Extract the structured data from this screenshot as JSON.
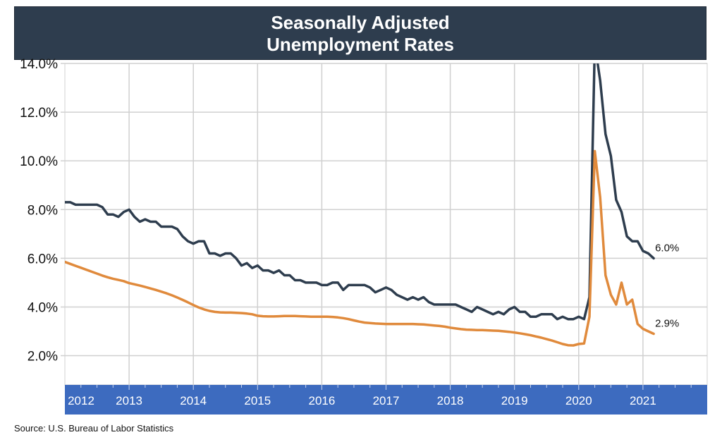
{
  "chart_data": {
    "type": "line",
    "title": [
      "Seasonally Adjusted",
      "Unemployment Rates"
    ],
    "xlabel": "",
    "ylabel": "",
    "source": "Source: U.S. Bureau of Labor Statistics",
    "ylim": [
      0.8,
      14.0
    ],
    "xlim": [
      "2012-01",
      "2022-01"
    ],
    "grid": true,
    "y_ticks": [
      {
        "value": 2,
        "label": "2.0%"
      },
      {
        "value": 4,
        "label": "4.0%"
      },
      {
        "value": 6,
        "label": "6.0%"
      },
      {
        "value": 8,
        "label": "8.0%"
      },
      {
        "value": 10,
        "label": "10.0%"
      },
      {
        "value": 12,
        "label": "12.0%"
      },
      {
        "value": 14,
        "label": "14.0%"
      }
    ],
    "x_ticks": [
      "2012",
      "2013",
      "2014",
      "2015",
      "2016",
      "2017",
      "2018",
      "2019",
      "2020",
      "2021"
    ],
    "start_month": "2012-01",
    "colors": {
      "title_bg": "#2e3d4e",
      "axis_band": "#3d6bbf",
      "grid": "#d0d0d0"
    },
    "series": [
      {
        "color": "#2e3d4e",
        "end_label": "6.0%",
        "values": [
          8.3,
          8.3,
          8.2,
          8.2,
          8.2,
          8.2,
          8.2,
          8.1,
          7.8,
          7.8,
          7.7,
          7.9,
          8.0,
          7.7,
          7.5,
          7.6,
          7.5,
          7.5,
          7.3,
          7.3,
          7.3,
          7.2,
          6.9,
          6.7,
          6.6,
          6.7,
          6.7,
          6.2,
          6.2,
          6.1,
          6.2,
          6.2,
          6.0,
          5.7,
          5.8,
          5.6,
          5.7,
          5.5,
          5.5,
          5.4,
          5.5,
          5.3,
          5.3,
          5.1,
          5.1,
          5.0,
          5.0,
          5.0,
          4.9,
          4.9,
          5.0,
          5.0,
          4.7,
          4.9,
          4.9,
          4.9,
          4.9,
          4.8,
          4.6,
          4.7,
          4.8,
          4.7,
          4.5,
          4.4,
          4.3,
          4.4,
          4.3,
          4.4,
          4.2,
          4.1,
          4.1,
          4.1,
          4.1,
          4.1,
          4.0,
          3.9,
          3.8,
          4.0,
          3.9,
          3.8,
          3.7,
          3.8,
          3.7,
          3.9,
          4.0,
          3.8,
          3.8,
          3.6,
          3.6,
          3.7,
          3.7,
          3.7,
          3.5,
          3.6,
          3.5,
          3.5,
          3.6,
          3.5,
          4.4,
          14.8,
          13.3,
          11.1,
          10.2,
          8.4,
          7.9,
          6.9,
          6.7,
          6.7,
          6.3,
          6.2,
          6.0
        ]
      },
      {
        "color": "#e08a3c",
        "end_label": "2.9%",
        "values": [
          5.85,
          5.77,
          5.69,
          5.61,
          5.53,
          5.45,
          5.37,
          5.29,
          5.22,
          5.16,
          5.11,
          5.06,
          4.98,
          4.93,
          4.88,
          4.82,
          4.76,
          4.7,
          4.63,
          4.56,
          4.48,
          4.39,
          4.29,
          4.19,
          4.08,
          3.98,
          3.9,
          3.84,
          3.8,
          3.78,
          3.77,
          3.77,
          3.76,
          3.75,
          3.73,
          3.7,
          3.64,
          3.62,
          3.61,
          3.61,
          3.62,
          3.63,
          3.63,
          3.63,
          3.62,
          3.61,
          3.6,
          3.6,
          3.6,
          3.6,
          3.59,
          3.57,
          3.54,
          3.5,
          3.45,
          3.4,
          3.36,
          3.34,
          3.32,
          3.31,
          3.3,
          3.3,
          3.3,
          3.3,
          3.3,
          3.3,
          3.29,
          3.28,
          3.26,
          3.24,
          3.22,
          3.19,
          3.15,
          3.12,
          3.09,
          3.07,
          3.06,
          3.05,
          3.05,
          3.04,
          3.03,
          3.02,
          3.0,
          2.98,
          2.95,
          2.92,
          2.88,
          2.84,
          2.79,
          2.74,
          2.68,
          2.62,
          2.55,
          2.48,
          2.43,
          2.42,
          2.48,
          2.5,
          3.6,
          10.4,
          8.5,
          5.3,
          4.5,
          4.1,
          5.0,
          4.1,
          4.3,
          3.3,
          3.1,
          3.0,
          2.9
        ]
      }
    ]
  }
}
